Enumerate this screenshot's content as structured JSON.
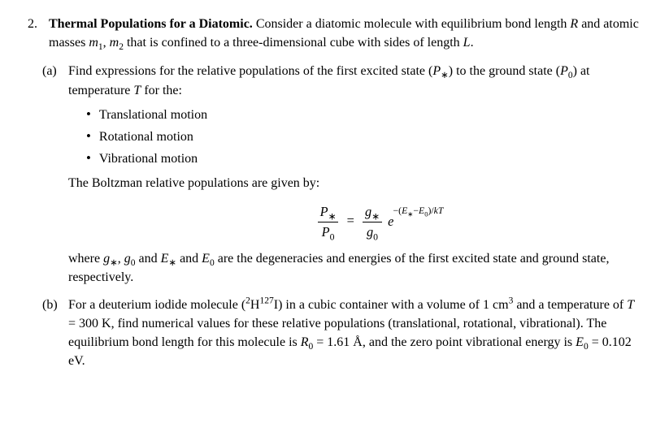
{
  "problem": {
    "number": "2.",
    "title": "Thermal Populations for a Diatomic.",
    "intro_text_html": "Consider a diatomic molecule with equilibrium bond length <span class=\"ital\">R</span> and atomic masses <span class=\"ital\">m</span><sub>1</sub>, <span class=\"ital\">m</span><sub>2</sub> that is confined to a three-dimensional cube with sides of length <span class=\"ital\">L</span>."
  },
  "partA": {
    "label": "(a)",
    "lead_html": "Find expressions for the relative populations of the first excited state (<span class=\"ital\">P</span><sub>∗</sub>) to the ground state (<span class=\"ital\">P</span><sub>0</sub>) at temperature <span class=\"ital\">T</span> for the:",
    "bullet1": "Translational motion",
    "bullet2": "Rotational motion",
    "bullet3": "Vibrational motion",
    "tail_text": "The Boltzman relative populations are given by:",
    "eq_frac_num_html": "<span class=\"ital\">P</span><sub>∗</sub>",
    "eq_frac_den_html": "<span class=\"ital\">P</span><sub>0</sub>",
    "eq_rhs_frac_num_html": "<span class=\"ital\">g</span><sub>∗</sub>",
    "eq_rhs_frac_den_html": "<span class=\"ital\">g</span><sub>0</sub>",
    "eq_exp_html": "−(<span class=\"ital\">E</span><sub>∗</sub>−<span class=\"ital\">E</span><sub>0</sub>)/<span class=\"ital\">kT</span>",
    "following_html": "where <span class=\"ital\">g</span><sub>∗</sub>, <span class=\"ital\">g</span><sub>0</sub> and <span class=\"ital\">E</span><sub>∗</sub> and <span class=\"ital\">E</span><sub>0</sub> are the degeneracies and energies of the first excited state and ground state, respectively."
  },
  "partB": {
    "label": "(b)",
    "body_html": "For a deuterium iodide molecule (<sup>2</sup>H<sup>127</sup>I) in a cubic container with a volume of 1 cm<sup>3</sup> and a temperature of <span class=\"ital\">T</span> = 300 K, find numerical values for these relative populations (translational, rotational, vibrational). The equilibrium bond length for this molecule is <span class=\"ital\">R</span><sub>0</sub> = 1.61 Å, and the zero point vibrational energy is <span class=\"ital\">E</span><sub>0</sub> = 0.102 eV."
  }
}
